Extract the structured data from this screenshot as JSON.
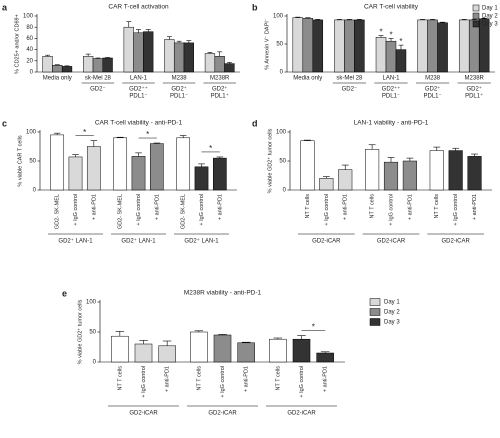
{
  "chart_data": [
    {
      "type": "bar",
      "panel": "a",
      "title": "CAR T-cell activation",
      "y_label": "% CD25+ and/or CD69+",
      "categories": [
        "Media only",
        "sk-Mel 28",
        "LAN-1",
        "M238",
        "M238R"
      ],
      "sublabels": [
        null,
        [
          "GD2⁻"
        ],
        [
          "GD2⁺⁺",
          "PDL1⁻"
        ],
        [
          "GD2⁺",
          "PDL1⁻"
        ],
        [
          "GD2⁺",
          "PDL1⁺"
        ]
      ],
      "series": [
        {
          "color": "#d9d9d9",
          "values": [
            28,
            28,
            80,
            58,
            33
          ],
          "errors": [
            2,
            4,
            10,
            5,
            2
          ]
        },
        {
          "color": "#8c8c8c",
          "values": [
            12,
            24,
            70,
            52,
            28
          ],
          "errors": [
            1,
            1,
            6,
            3,
            8
          ]
        },
        {
          "color": "#333333",
          "values": [
            10,
            25,
            72,
            52,
            15
          ],
          "errors": [
            1,
            1,
            4,
            4,
            2
          ]
        }
      ],
      "ylim": [
        0,
        100
      ],
      "yticks": [
        0,
        20,
        40,
        60,
        80,
        100
      ]
    },
    {
      "type": "bar",
      "panel": "b",
      "title": "CAR T-cell viability",
      "y_label": "% Annexin V⁻ DAPI⁻",
      "categories": [
        "Media only",
        "sk-Mel 28",
        "LAN-1",
        "M238",
        "M238R"
      ],
      "sublabels": [
        null,
        [
          "GD2⁻"
        ],
        [
          "GD2⁺⁺",
          "PDL1⁻"
        ],
        [
          "GD2⁺",
          "PDL1⁻"
        ],
        [
          "GD2⁺",
          "PDL1⁺"
        ]
      ],
      "series": [
        {
          "name": "Day 1",
          "color": "#d9d9d9",
          "values": [
            97,
            93,
            62,
            93,
            93
          ],
          "errors": [
            1,
            1,
            3,
            1,
            1
          ]
        },
        {
          "name": "Day 2",
          "color": "#8c8c8c",
          "values": [
            96,
            93,
            55,
            93,
            93
          ],
          "errors": [
            1,
            1,
            5,
            1,
            1
          ]
        },
        {
          "name": "Day 3",
          "color": "#333333",
          "values": [
            93,
            93,
            40,
            88,
            95
          ],
          "errors": [
            1,
            1,
            8,
            1,
            1
          ]
        }
      ],
      "annotations": [
        "*",
        "*",
        "*"
      ],
      "ylim": [
        0,
        100
      ],
      "yticks": [
        0,
        50,
        100
      ]
    },
    {
      "type": "bar",
      "panel": "c",
      "title": "CAR T-cell viability - anti-PD-1",
      "y_label": "% viable CAR T cells",
      "categories": [
        "GD2- SK-MEL",
        "+ IgG control",
        "+ anti-PD1",
        "GD2- SK-MEL",
        "+ IgG control",
        "+ anti-PD1",
        "GD2- SK-MEL",
        "+ IgG control",
        "+ anti-PD1"
      ],
      "values": [
        95,
        57,
        75,
        90,
        58,
        80,
        90,
        40,
        55
      ],
      "errors": [
        3,
        4,
        10,
        1,
        6,
        1,
        4,
        5,
        2
      ],
      "colors": [
        "#ffffff",
        "#d9d9d9",
        "#d9d9d9",
        "#ffffff",
        "#8c8c8c",
        "#8c8c8c",
        "#ffffff",
        "#333333",
        "#333333"
      ],
      "group_labels": [
        "GD2⁺ LAN-1",
        "GD2⁺ LAN-1",
        "GD2⁺ LAN-1"
      ],
      "annotations": [
        "*",
        "*",
        "*"
      ],
      "ylim": [
        0,
        100
      ],
      "yticks": [
        0,
        50,
        100
      ]
    },
    {
      "type": "bar",
      "panel": "d",
      "title": "LAN-1 viability - anti-PD-1",
      "y_label": "% viable GD2⁺ tumor cells",
      "categories": [
        "NT T cells",
        "+ IgG control",
        "+ anti-PD1",
        "NT T cells",
        "+ IgG control",
        "+ anti-PD1",
        "NT T cells",
        "+ IgG control",
        "+ anti-PD1"
      ],
      "values": [
        85,
        20,
        35,
        70,
        48,
        50,
        68,
        68,
        58
      ],
      "errors": [
        1,
        3,
        8,
        8,
        8,
        5,
        6,
        4,
        4
      ],
      "colors": [
        "#ffffff",
        "#d9d9d9",
        "#d9d9d9",
        "#ffffff",
        "#8c8c8c",
        "#8c8c8c",
        "#ffffff",
        "#333333",
        "#333333"
      ],
      "group_labels": [
        "GD2-iCAR",
        "GD2-iCAR",
        "GD2-iCAR"
      ],
      "ylim": [
        0,
        100
      ],
      "yticks": [
        0,
        50,
        100
      ]
    },
    {
      "type": "bar",
      "panel": "e",
      "title": "M238R viability - anti-PD-1",
      "y_label": "% viable GD2⁺ tumor cells",
      "categories": [
        "NT T cells",
        "+ IgG control",
        "+ anti-PD1",
        "NT T cells",
        "+ IgG control",
        "+ anti-PD1",
        "NT T cells",
        "+ IgG control",
        "+ anti-PD1"
      ],
      "values": [
        43,
        30,
        27,
        50,
        45,
        32,
        38,
        38,
        15
      ],
      "errors": [
        8,
        6,
        8,
        2,
        1,
        1,
        2,
        6,
        2
      ],
      "colors": [
        "#ffffff",
        "#d9d9d9",
        "#d9d9d9",
        "#ffffff",
        "#8c8c8c",
        "#8c8c8c",
        "#ffffff",
        "#333333",
        "#333333"
      ],
      "group_labels": [
        "GD2-iCAR",
        "GD2-iCAR",
        "GD2-iCAR"
      ],
      "legend": [
        {
          "name": "Day 1",
          "color": "#d9d9d9"
        },
        {
          "name": "Day 2",
          "color": "#8c8c8c"
        },
        {
          "name": "Day 3",
          "color": "#333333"
        }
      ],
      "annotations": [
        "*"
      ],
      "ylim": [
        0,
        100
      ],
      "yticks": [
        0,
        50,
        100
      ]
    }
  ]
}
